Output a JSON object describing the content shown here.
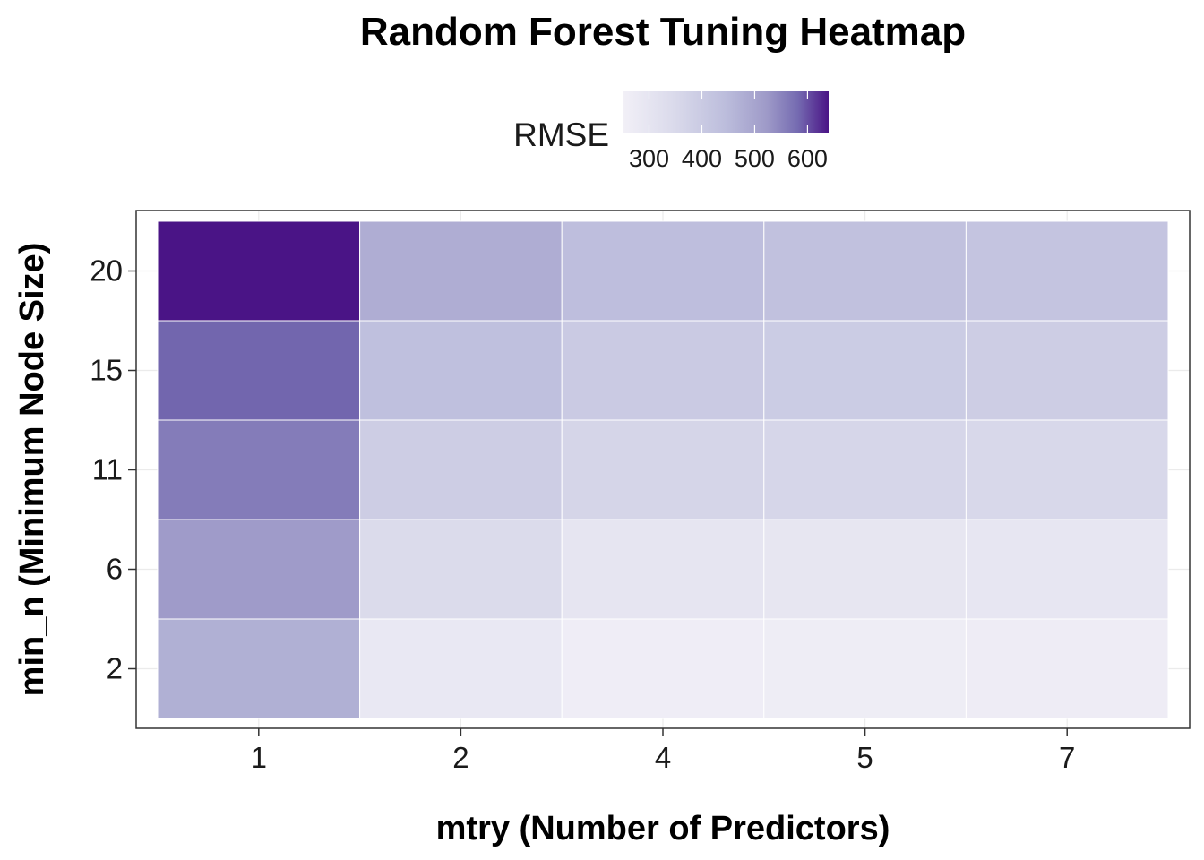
{
  "chart_data": {
    "type": "heatmap",
    "title": "Random Forest Tuning Heatmap",
    "xlabel": "mtry (Number of Predictors)",
    "ylabel": "min_n (Minimum Node Size)",
    "x_categories": [
      "1",
      "2",
      "4",
      "5",
      "7"
    ],
    "y_categories": [
      "2",
      "6",
      "11",
      "15",
      "20"
    ],
    "values": [
      [
        475,
        285,
        262,
        265,
        266
      ],
      [
        520,
        345,
        300,
        295,
        293
      ],
      [
        560,
        390,
        365,
        360,
        355
      ],
      [
        585,
        435,
        400,
        395,
        390
      ],
      [
        640,
        480,
        440,
        430,
        420
      ]
    ],
    "legend": {
      "title": "RMSE",
      "ticks": [
        300,
        400,
        500,
        600
      ],
      "range": [
        250,
        640
      ],
      "low_color": "#f2f0f7",
      "high_color": "#4a1486",
      "position": "top"
    },
    "grid": true,
    "panel_border": true
  }
}
